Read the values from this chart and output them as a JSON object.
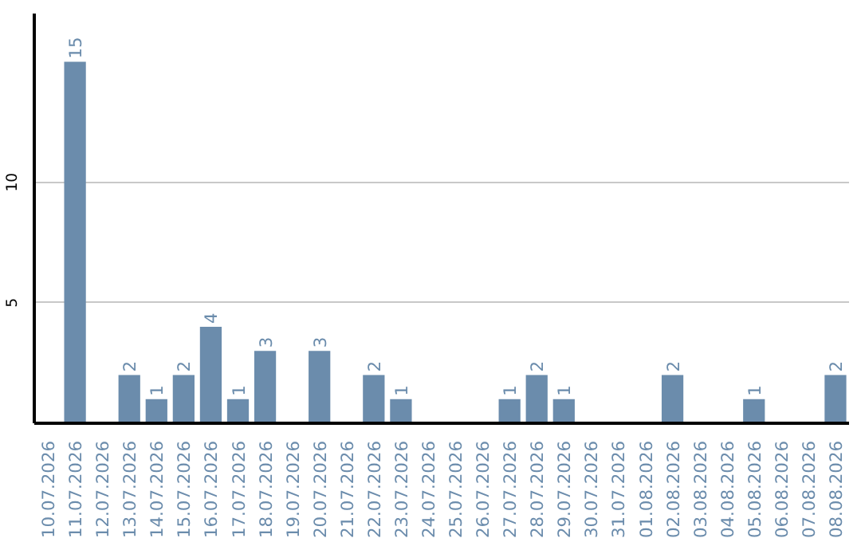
{
  "chart_data": {
    "type": "bar",
    "categories": [
      "10.07.2026",
      "11.07.2026",
      "12.07.2026",
      "13.07.2026",
      "14.07.2026",
      "15.07.2026",
      "16.07.2026",
      "17.07.2026",
      "18.07.2026",
      "19.07.2026",
      "20.07.2026",
      "21.07.2026",
      "22.07.2026",
      "23.07.2026",
      "24.07.2026",
      "25.07.2026",
      "26.07.2026",
      "27.07.2026",
      "28.07.2026",
      "29.07.2026",
      "30.07.2026",
      "31.07.2026",
      "01.08.2026",
      "02.08.2026",
      "03.08.2026",
      "04.08.2026",
      "05.08.2026",
      "06.08.2026",
      "07.08.2026",
      "08.08.2026"
    ],
    "values": [
      0,
      15,
      0,
      2,
      1,
      2,
      4,
      1,
      3,
      0,
      3,
      0,
      2,
      1,
      0,
      0,
      0,
      1,
      2,
      1,
      0,
      0,
      0,
      2,
      0,
      0,
      1,
      0,
      0,
      2
    ],
    "value_labels": [
      null,
      "15",
      null,
      "2",
      "1",
      "2",
      "4",
      "1",
      "3",
      null,
      "3",
      null,
      "2",
      "1",
      null,
      null,
      null,
      "1",
      "2",
      "1",
      null,
      null,
      null,
      "2",
      null,
      null,
      "1",
      null,
      null,
      "2"
    ],
    "color": "#6b8cac",
    "ylim": [
      0,
      17
    ],
    "yticks": [
      5,
      10
    ],
    "grid": "y"
  }
}
